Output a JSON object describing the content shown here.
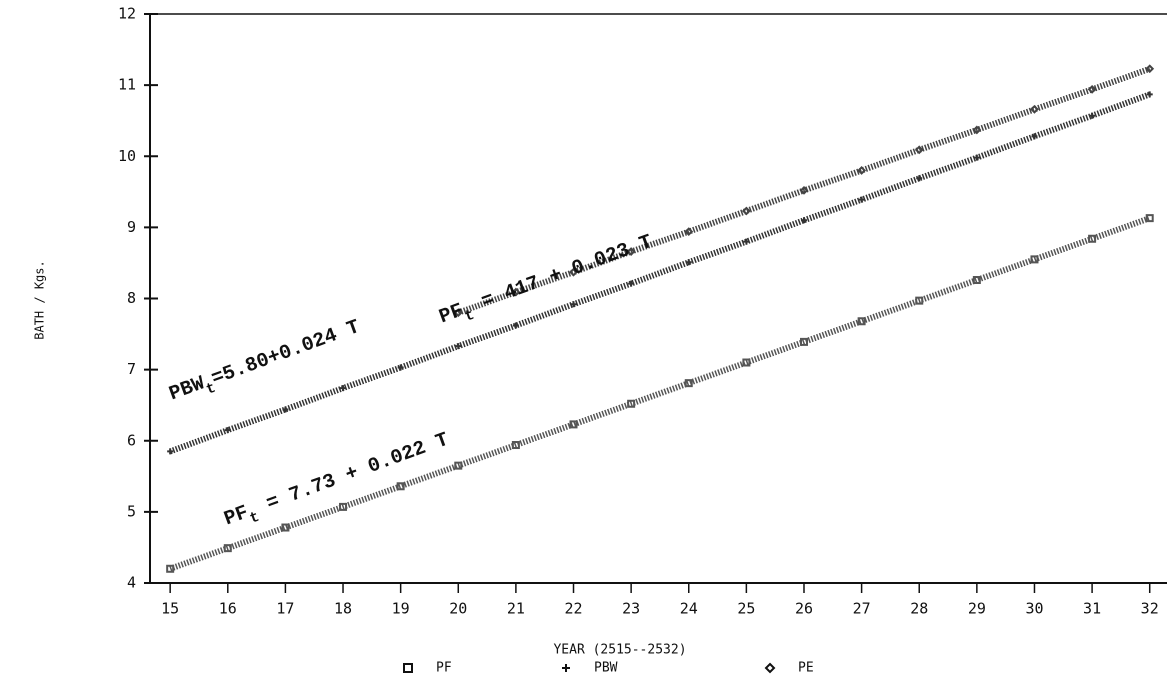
{
  "chart_data": {
    "type": "line",
    "y_label": "BATH / Kgs.",
    "x_label": "YEAR (2515--2532)",
    "x": [
      15,
      16,
      17,
      18,
      19,
      20,
      21,
      22,
      23,
      24,
      25,
      26,
      27,
      28,
      29,
      30,
      31,
      32
    ],
    "xlim": [
      14.65,
      32.3
    ],
    "xticks": [
      15,
      16,
      17,
      18,
      19,
      20,
      21,
      22,
      23,
      24,
      25,
      26,
      27,
      28,
      29,
      30,
      31,
      32
    ],
    "ylim": [
      4,
      12
    ],
    "yticks": [
      4,
      5,
      6,
      7,
      8,
      9,
      10,
      11,
      12
    ],
    "series": [
      {
        "name": "PF",
        "marker": "square",
        "color": "#555",
        "values": [
          4.2,
          4.49,
          4.78,
          5.07,
          5.36,
          5.65,
          5.94,
          6.23,
          6.52,
          6.81,
          7.1,
          7.39,
          7.68,
          7.97,
          8.26,
          8.55,
          8.84,
          9.13
        ]
      },
      {
        "name": "PBW",
        "marker": "plus",
        "color": "#333",
        "values": [
          5.85,
          6.15,
          6.44,
          6.74,
          7.03,
          7.33,
          7.62,
          7.92,
          8.21,
          8.51,
          8.8,
          9.1,
          9.39,
          9.69,
          9.98,
          10.28,
          10.57,
          10.87
        ]
      },
      {
        "name": "PE",
        "marker": "diamond",
        "color": "#444",
        "values": [
          null,
          null,
          null,
          null,
          null,
          7.8,
          8.09,
          8.37,
          8.66,
          8.94,
          9.23,
          9.52,
          9.8,
          10.09,
          10.37,
          10.66,
          10.94,
          11.23
        ]
      }
    ],
    "annotations": [
      {
        "main": "PBW",
        "sub": "t",
        "rest": "=5.80+0.024 T"
      },
      {
        "main": "PF",
        "sub": "t",
        "rest": " =  417 + 0.023 T"
      },
      {
        "main": "PF",
        "sub": "t",
        "rest": " = 7.73 + 0.022 T"
      }
    ]
  }
}
